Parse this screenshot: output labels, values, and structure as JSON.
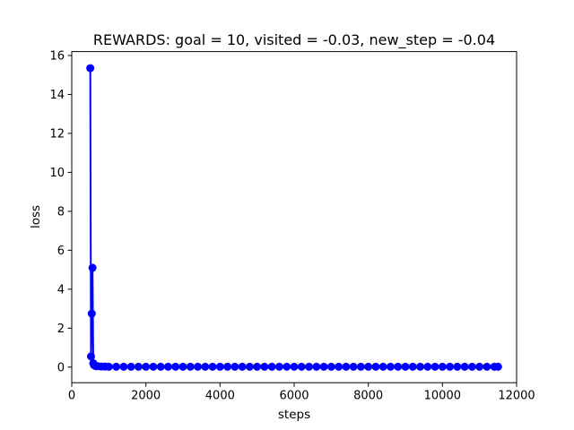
{
  "chart_data": {
    "type": "line",
    "title": "REWARDS: goal = 10, visited = -0.03, new_step = -0.04",
    "xlabel": "steps",
    "ylabel": "loss",
    "xlim": [
      0,
      12000
    ],
    "ylim": [
      -0.8,
      16.2
    ],
    "xticks": [
      0,
      2000,
      4000,
      6000,
      8000,
      10000,
      12000
    ],
    "yticks": [
      0,
      2,
      4,
      6,
      8,
      10,
      12,
      14,
      16
    ],
    "grid": false,
    "legend": "none",
    "series": [
      {
        "color": "#0000ff",
        "marker": "circle",
        "x": [
          500,
          520,
          540,
          560,
          580,
          600,
          650,
          700,
          800,
          900,
          1000,
          1200,
          1400,
          1600,
          1800,
          2000,
          2200,
          2400,
          2600,
          2800,
          3000,
          3200,
          3400,
          3600,
          3800,
          4000,
          4200,
          4400,
          4600,
          4800,
          5000,
          5200,
          5400,
          5600,
          5800,
          6000,
          6200,
          6400,
          6600,
          6800,
          7000,
          7200,
          7400,
          7600,
          7800,
          8000,
          8200,
          8400,
          8600,
          8800,
          9000,
          9200,
          9400,
          9600,
          9800,
          10000,
          10200,
          10400,
          10600,
          10800,
          11000,
          11200,
          11400,
          11500
        ],
        "y": [
          15.35,
          0.55,
          2.75,
          5.1,
          0.2,
          0.1,
          0.05,
          0.05,
          0.03,
          0.03,
          0.02,
          0.02,
          0.02,
          0.02,
          0.02,
          0.02,
          0.02,
          0.02,
          0.02,
          0.02,
          0.02,
          0.02,
          0.02,
          0.02,
          0.02,
          0.02,
          0.02,
          0.02,
          0.02,
          0.02,
          0.02,
          0.02,
          0.02,
          0.02,
          0.02,
          0.02,
          0.02,
          0.02,
          0.02,
          0.02,
          0.02,
          0.02,
          0.02,
          0.02,
          0.02,
          0.02,
          0.02,
          0.02,
          0.02,
          0.02,
          0.02,
          0.02,
          0.02,
          0.02,
          0.02,
          0.02,
          0.02,
          0.02,
          0.02,
          0.02,
          0.02,
          0.02,
          0.02,
          0.02
        ]
      }
    ]
  }
}
